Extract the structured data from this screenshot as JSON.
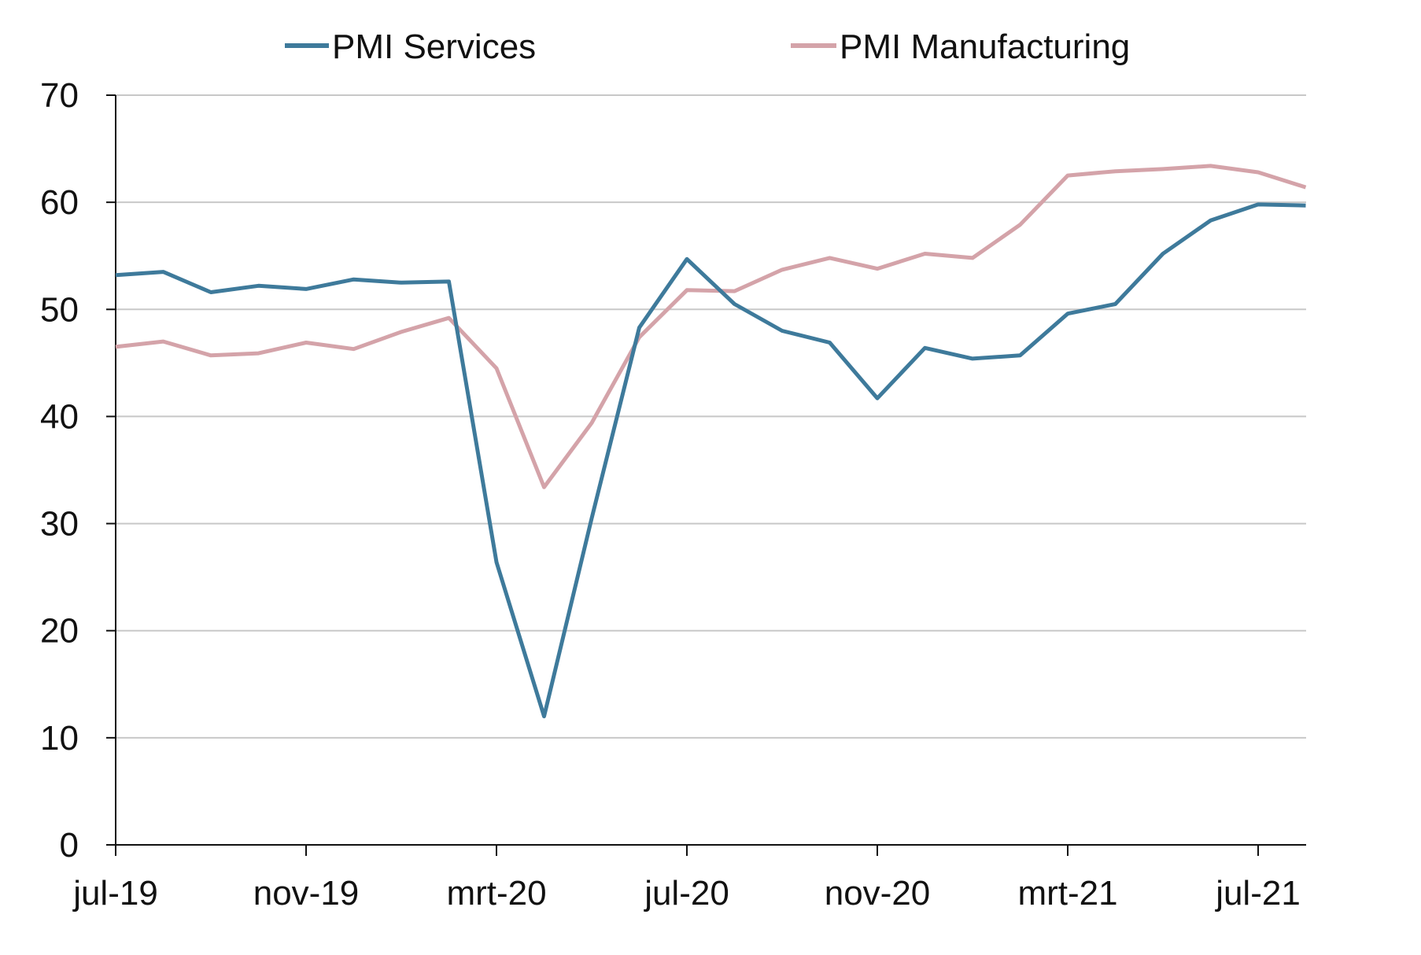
{
  "chart_data": {
    "type": "line",
    "title": "",
    "xlabel": "",
    "ylabel": "",
    "ylim": [
      0,
      70
    ],
    "y_ticks": [
      0,
      10,
      20,
      30,
      40,
      50,
      60,
      70
    ],
    "grid": "horizontal",
    "legend_position": "top",
    "x": [
      "jul-19",
      "aug-19",
      "sep-19",
      "okt-19",
      "nov-19",
      "dec-19",
      "jan-20",
      "feb-20",
      "mrt-20",
      "apr-20",
      "mei-20",
      "jun-20",
      "jul-20",
      "aug-20",
      "sep-20",
      "okt-20",
      "nov-20",
      "dec-20",
      "jan-21",
      "feb-21",
      "mrt-21",
      "apr-21",
      "mei-21",
      "jun-21",
      "jul-21",
      "aug-21"
    ],
    "x_tick_labels": [
      {
        "index": 0,
        "label": "jul-19"
      },
      {
        "index": 4,
        "label": "nov-19"
      },
      {
        "index": 8,
        "label": "mrt-20"
      },
      {
        "index": 12,
        "label": "jul-20"
      },
      {
        "index": 16,
        "label": "nov-20"
      },
      {
        "index": 20,
        "label": "mrt-21"
      },
      {
        "index": 24,
        "label": "jul-21"
      }
    ],
    "series": [
      {
        "name": "PMI Services",
        "color": "#3e7a9b",
        "values": [
          53.2,
          53.5,
          51.6,
          52.2,
          51.9,
          52.8,
          52.5,
          52.6,
          26.4,
          12.0,
          30.5,
          48.3,
          54.7,
          50.5,
          48.0,
          46.9,
          41.7,
          46.4,
          45.4,
          45.7,
          49.6,
          50.5,
          55.2,
          58.3,
          59.8,
          59.7
        ]
      },
      {
        "name": "PMI Manufacturing",
        "color": "#d4a3a9",
        "values": [
          46.5,
          47.0,
          45.7,
          45.9,
          46.9,
          46.3,
          47.9,
          49.2,
          44.5,
          33.4,
          39.4,
          47.4,
          51.8,
          51.7,
          53.7,
          54.8,
          53.8,
          55.2,
          54.8,
          57.9,
          62.5,
          62.9,
          63.1,
          63.4,
          62.8,
          61.4
        ]
      }
    ]
  }
}
